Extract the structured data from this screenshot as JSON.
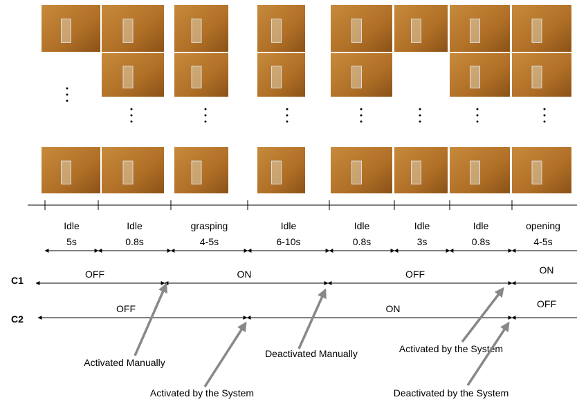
{
  "phases": [
    {
      "label": "Idle",
      "duration": "5s"
    },
    {
      "label": "Idle",
      "duration": "0.8s"
    },
    {
      "label": "grasping",
      "duration": "4-5s"
    },
    {
      "label": "Idle",
      "duration": "6-10s"
    },
    {
      "label": "Idle",
      "duration": "0.8s"
    },
    {
      "label": "Idle",
      "duration": "3s"
    },
    {
      "label": "Idle",
      "duration": "0.8s"
    },
    {
      "label": "opening",
      "duration": "4-5s"
    }
  ],
  "c1": {
    "label": "C1",
    "segments": [
      "OFF",
      "ON",
      "OFF",
      "ON"
    ]
  },
  "c2": {
    "label": "C2",
    "segments": [
      "OFF",
      "ON",
      "OFF"
    ]
  },
  "annotations": [
    "Activated Manually",
    "Deactivated Manually",
    "Activated by the System",
    "Activated by the System",
    "Deactivated by the System"
  ]
}
